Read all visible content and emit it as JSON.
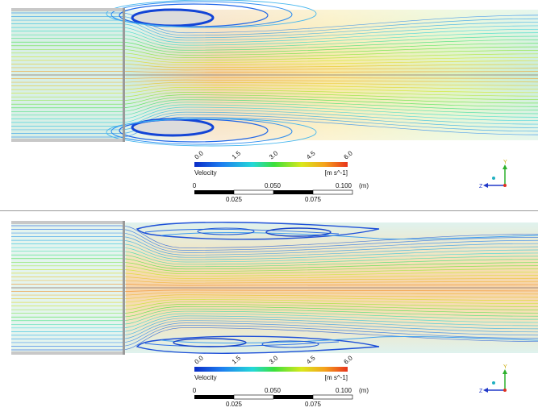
{
  "panels": [
    {
      "id": "top",
      "legend": {
        "title": "Velocity",
        "unit": "[m s^-1]",
        "ticks": [
          "0.0",
          "1.5",
          "3.0",
          "4.5",
          "6.0"
        ],
        "colors": [
          "#0a2cc7",
          "#1e7ff0",
          "#24d8d8",
          "#3be03b",
          "#d9e81c",
          "#f5a21c",
          "#e8331c"
        ]
      },
      "scale": {
        "labels_top": [
          "0",
          "0.050",
          "0.100"
        ],
        "labels_bottom": [
          "0.025",
          "0.075"
        ],
        "unit": "(m)"
      },
      "axes": {
        "y": "Y",
        "z": "Z"
      }
    },
    {
      "id": "bottom",
      "legend": {
        "title": "Velocity",
        "unit": "[m s^-1]",
        "ticks": [
          "0.0",
          "1.5",
          "3.0",
          "4.5",
          "6.0"
        ],
        "colors": [
          "#0a2cc7",
          "#1e7ff0",
          "#24d8d8",
          "#3be03b",
          "#d9e81c",
          "#f5a21c",
          "#e8331c"
        ]
      },
      "scale": {
        "labels_top": [
          "0",
          "0.050",
          "0.100"
        ],
        "labels_bottom": [
          "0.025",
          "0.075"
        ],
        "unit": "(m)"
      },
      "axes": {
        "y": "Y",
        "z": "Z"
      }
    }
  ]
}
